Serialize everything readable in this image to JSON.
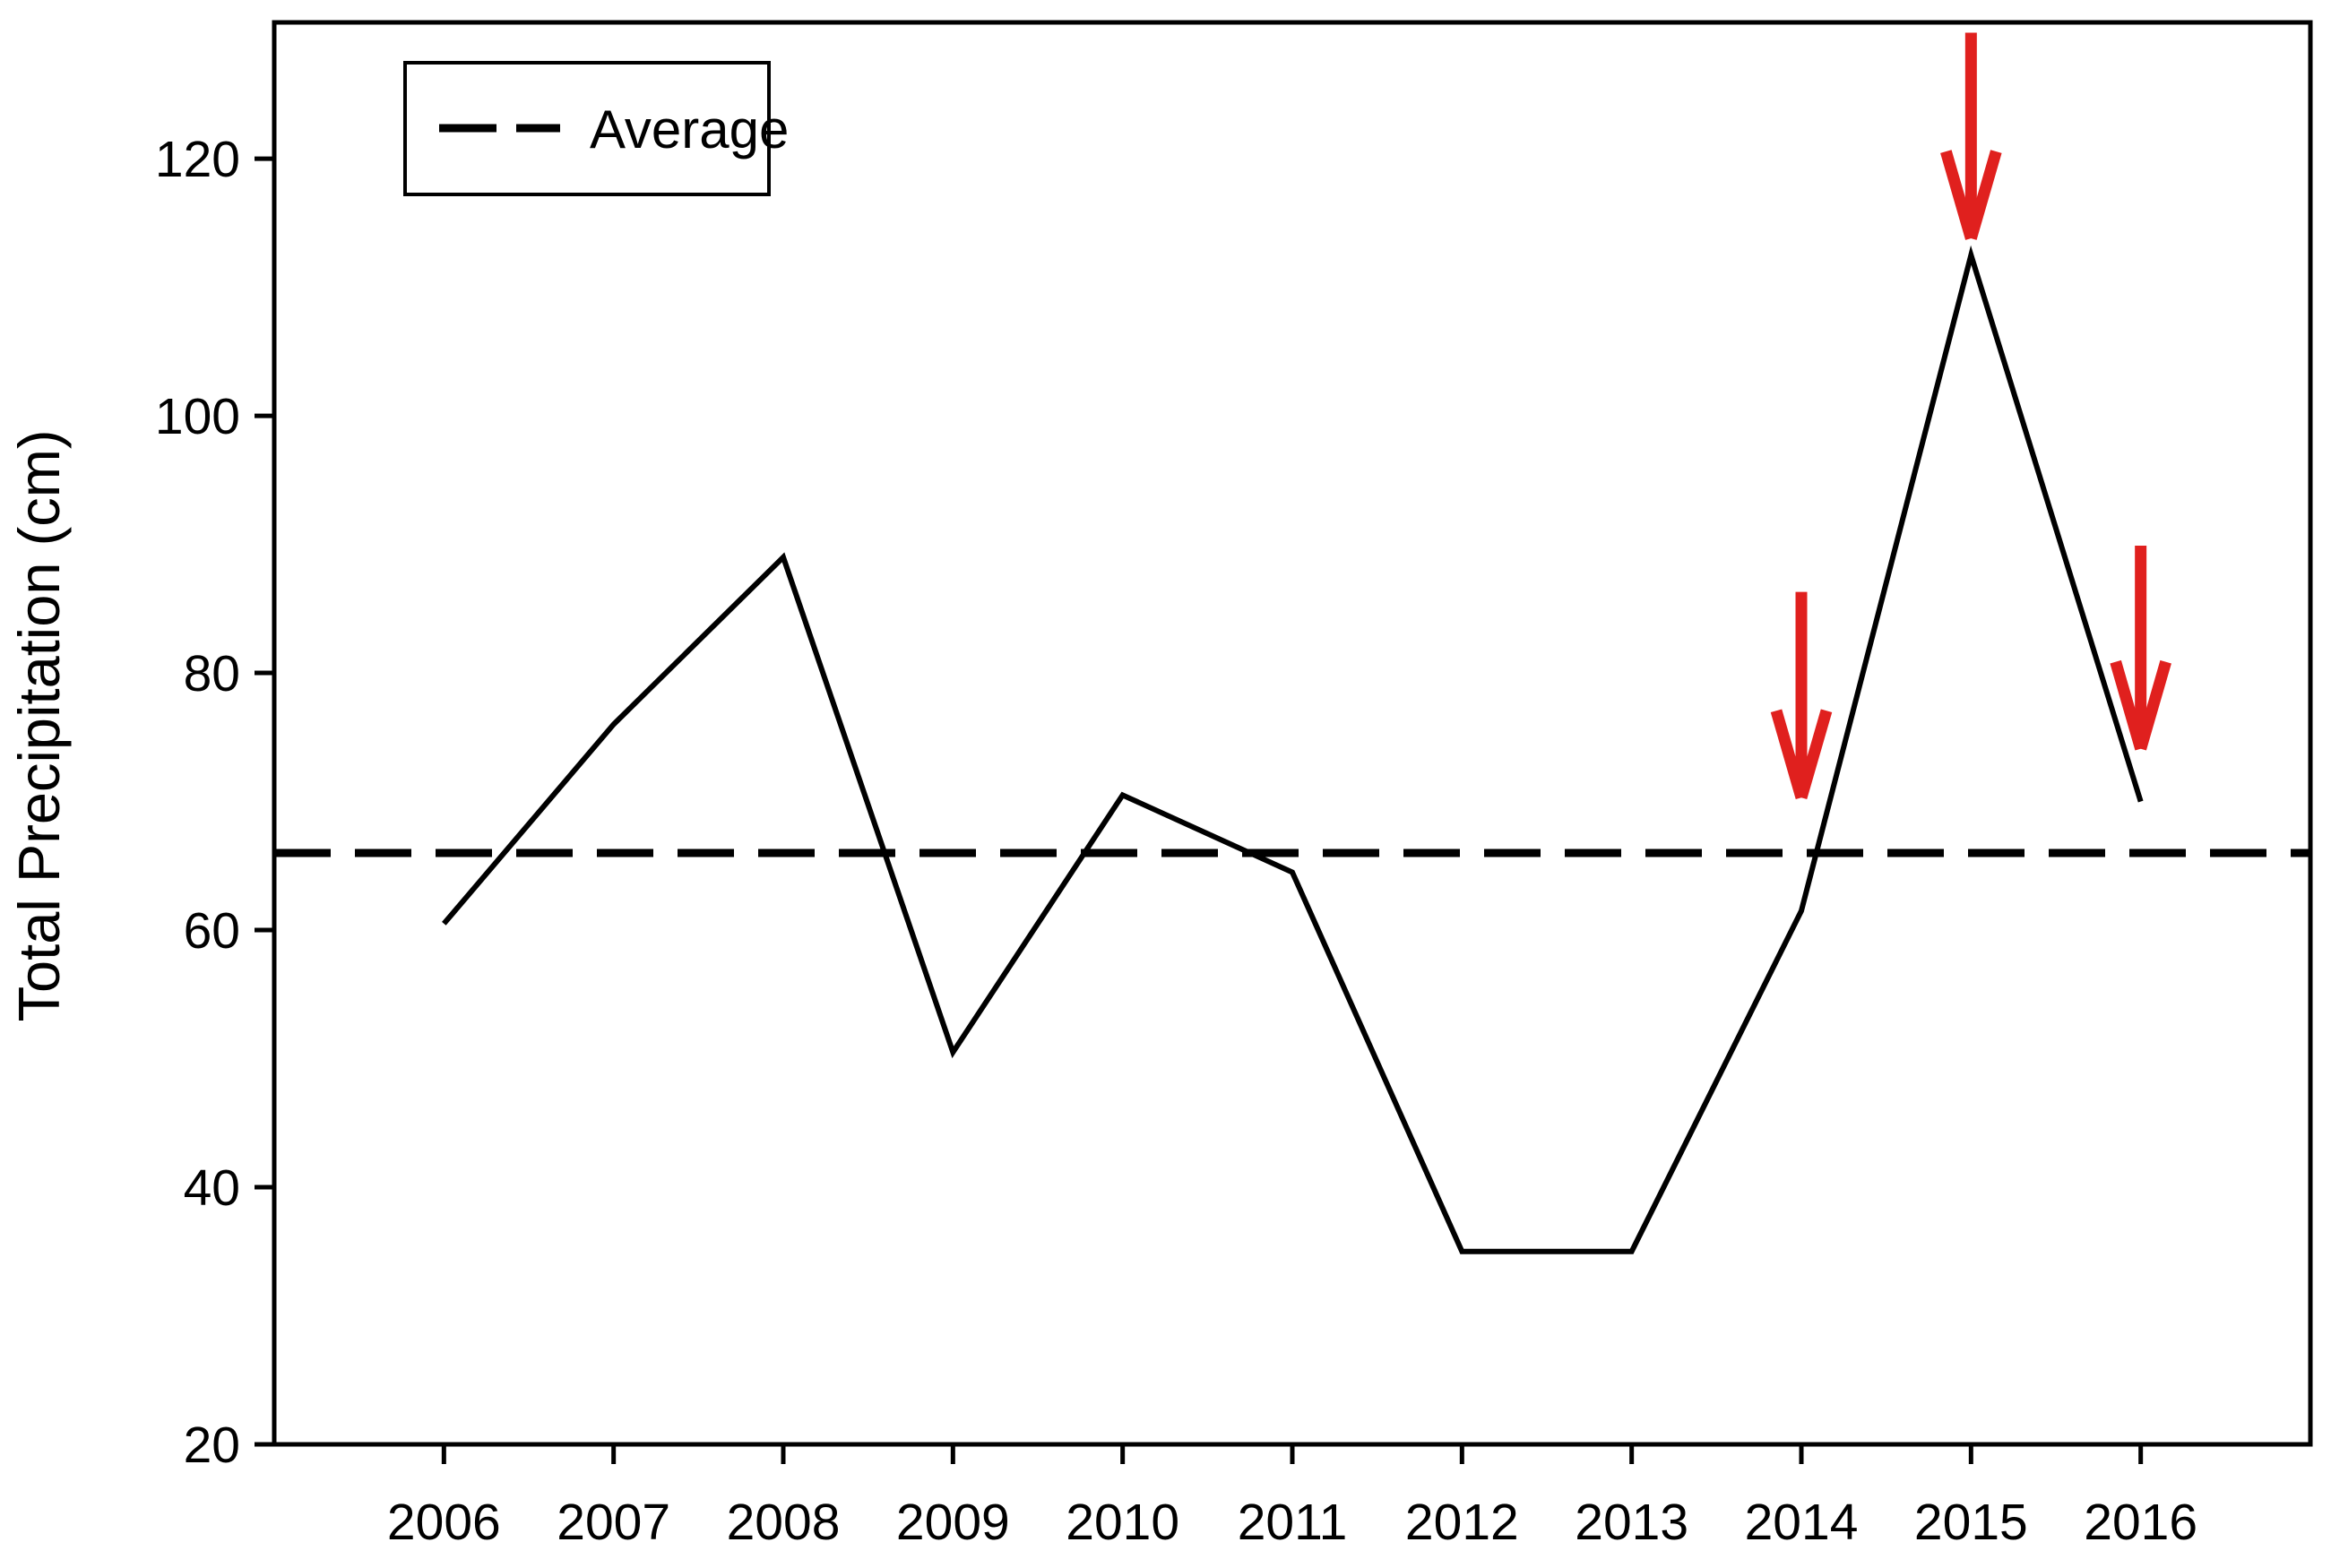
{
  "chart_data": {
    "type": "line",
    "title": "",
    "xlabel": "",
    "ylabel": "Total Precipitation (cm)",
    "x": [
      2006,
      2007,
      2008,
      2009,
      2010,
      2011,
      2012,
      2013,
      2014,
      2015,
      2016
    ],
    "series": [
      {
        "name": "Total Precipitation",
        "color": "#000000",
        "style": "solid",
        "values": [
          60.5,
          76,
          89,
          50.5,
          70.5,
          64.5,
          35,
          35,
          61.5,
          112.5,
          70
        ]
      }
    ],
    "average_line": {
      "label": "Average",
      "value": 66,
      "style": "dashed",
      "color": "#000000"
    },
    "annotations": [
      {
        "type": "arrow-down",
        "year": 2014,
        "value_from": 86.3,
        "value_to": 70.3,
        "color": "#e0201e"
      },
      {
        "type": "arrow-down",
        "year": 2015,
        "value_from": 129.8,
        "value_to": 113.8,
        "color": "#e0201e"
      },
      {
        "type": "arrow-down",
        "year": 2016,
        "value_from": 89.9,
        "value_to": 74.1,
        "color": "#e0201e"
      }
    ],
    "xlim": [
      2005,
      2017
    ],
    "ylim": [
      20,
      130.6
    ],
    "xticks": [
      2006,
      2007,
      2008,
      2009,
      2010,
      2011,
      2012,
      2013,
      2014,
      2015,
      2016
    ],
    "yticks": [
      20,
      40,
      60,
      80,
      100,
      120
    ],
    "grid": false,
    "legend": {
      "position": "top-left",
      "entries": [
        {
          "label": "Average",
          "line_style": "dashed",
          "color": "#000000"
        }
      ]
    }
  },
  "styles": {
    "background": "#ffffff",
    "axis_color": "#000000",
    "text_color": "#000000",
    "arrow_color": "#e0201e"
  }
}
